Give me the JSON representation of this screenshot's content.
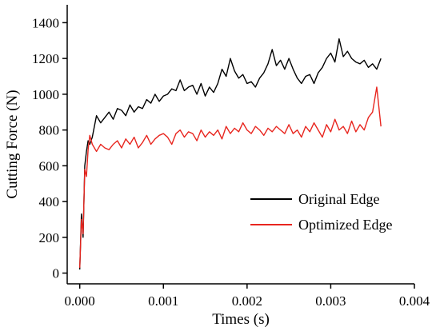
{
  "chart_data": {
    "type": "line",
    "xlabel": "Times (s)",
    "ylabel": "Cutting Force (N)",
    "xlim": [
      -0.00015,
      0.004
    ],
    "ylim": [
      -60,
      1500
    ],
    "xticks": [
      0.0,
      0.001,
      0.002,
      0.003,
      0.004
    ],
    "xtick_labels": [
      "0.000",
      "0.001",
      "0.002",
      "0.003",
      "0.004"
    ],
    "yticks": [
      0,
      200,
      400,
      600,
      800,
      1000,
      1200,
      1400
    ],
    "ytick_labels": [
      "0",
      "200",
      "400",
      "600",
      "800",
      "1000",
      "1200",
      "1400"
    ],
    "legend_position": "bottom-right",
    "grid": false,
    "series": [
      {
        "name": "Original Edge",
        "color": "#000000",
        "x": [
          0.0,
          2e-05,
          4e-05,
          6e-05,
          8e-05,
          0.0001,
          0.00012,
          0.00015,
          0.0002,
          0.00025,
          0.0003,
          0.00035,
          0.0004,
          0.00045,
          0.0005,
          0.00055,
          0.0006,
          0.00065,
          0.0007,
          0.00075,
          0.0008,
          0.00085,
          0.0009,
          0.00095,
          0.001,
          0.00105,
          0.0011,
          0.00115,
          0.0012,
          0.00125,
          0.0013,
          0.00135,
          0.0014,
          0.00145,
          0.0015,
          0.00155,
          0.0016,
          0.00165,
          0.0017,
          0.00175,
          0.0018,
          0.00185,
          0.0019,
          0.00195,
          0.002,
          0.00205,
          0.0021,
          0.00215,
          0.0022,
          0.00225,
          0.0023,
          0.00235,
          0.0024,
          0.00245,
          0.0025,
          0.00255,
          0.0026,
          0.00265,
          0.0027,
          0.00275,
          0.0028,
          0.00285,
          0.0029,
          0.00295,
          0.003,
          0.00305,
          0.0031,
          0.00315,
          0.0032,
          0.00325,
          0.0033,
          0.00335,
          0.0034,
          0.00345,
          0.0035,
          0.00355,
          0.0036
        ],
        "y": [
          20,
          330,
          200,
          600,
          680,
          740,
          720,
          760,
          880,
          840,
          870,
          900,
          860,
          920,
          910,
          880,
          940,
          900,
          930,
          920,
          970,
          950,
          1000,
          960,
          990,
          1000,
          1030,
          1020,
          1080,
          1020,
          1040,
          1050,
          1000,
          1060,
          990,
          1040,
          1010,
          1060,
          1140,
          1100,
          1200,
          1130,
          1090,
          1110,
          1060,
          1070,
          1040,
          1090,
          1120,
          1170,
          1250,
          1160,
          1190,
          1140,
          1200,
          1140,
          1090,
          1060,
          1100,
          1110,
          1060,
          1120,
          1150,
          1200,
          1230,
          1180,
          1310,
          1210,
          1240,
          1200,
          1180,
          1170,
          1190,
          1150,
          1170,
          1140,
          1200
        ]
      },
      {
        "name": "Optimized Edge",
        "color": "#e8261f",
        "x": [
          0.0,
          2e-05,
          4e-05,
          6e-05,
          8e-05,
          0.0001,
          0.00012,
          0.00015,
          0.0002,
          0.00025,
          0.0003,
          0.00035,
          0.0004,
          0.00045,
          0.0005,
          0.00055,
          0.0006,
          0.00065,
          0.0007,
          0.00075,
          0.0008,
          0.00085,
          0.0009,
          0.00095,
          0.001,
          0.00105,
          0.0011,
          0.00115,
          0.0012,
          0.00125,
          0.0013,
          0.00135,
          0.0014,
          0.00145,
          0.0015,
          0.00155,
          0.0016,
          0.00165,
          0.0017,
          0.00175,
          0.0018,
          0.00185,
          0.0019,
          0.00195,
          0.002,
          0.00205,
          0.0021,
          0.00215,
          0.0022,
          0.00225,
          0.0023,
          0.00235,
          0.0024,
          0.00245,
          0.0025,
          0.00255,
          0.0026,
          0.00265,
          0.0027,
          0.00275,
          0.0028,
          0.00285,
          0.0029,
          0.00295,
          0.003,
          0.00305,
          0.0031,
          0.00315,
          0.0032,
          0.00325,
          0.0033,
          0.00335,
          0.0034,
          0.00345,
          0.0035,
          0.00355,
          0.0036
        ],
        "y": [
          30,
          300,
          220,
          580,
          540,
          690,
          770,
          720,
          680,
          720,
          700,
          690,
          720,
          740,
          700,
          750,
          720,
          760,
          700,
          730,
          770,
          720,
          750,
          770,
          780,
          760,
          720,
          780,
          800,
          760,
          790,
          780,
          740,
          800,
          760,
          790,
          770,
          800,
          750,
          820,
          780,
          810,
          790,
          840,
          800,
          780,
          820,
          800,
          770,
          810,
          790,
          820,
          800,
          780,
          830,
          780,
          800,
          760,
          820,
          790,
          840,
          800,
          760,
          830,
          790,
          860,
          800,
          820,
          780,
          850,
          790,
          830,
          800,
          870,
          900,
          1040,
          820
        ]
      }
    ]
  }
}
